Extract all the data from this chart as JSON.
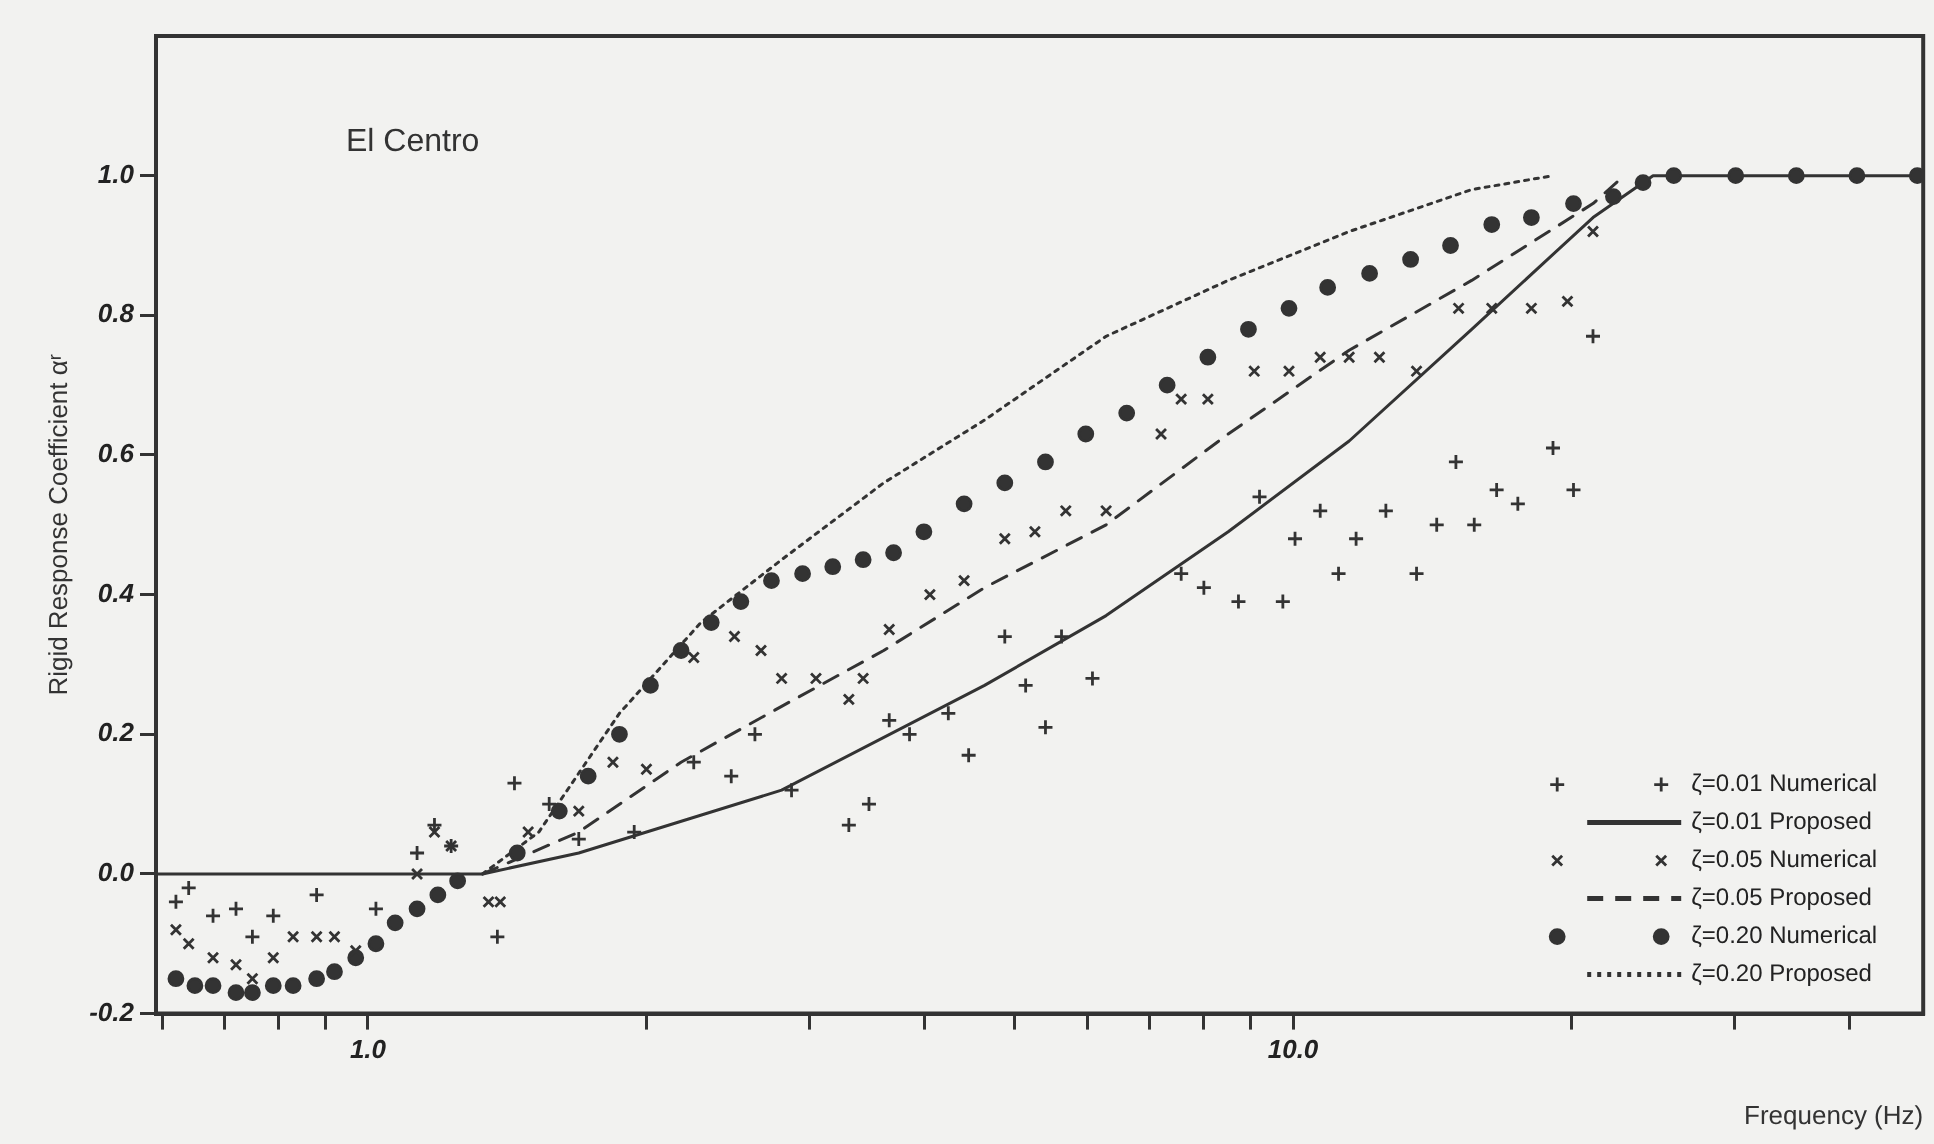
{
  "chart_data": {
    "type": "scatter",
    "xlabel": "Frequency (Hz)",
    "ylabel": "Rigid Response Coefficient αʳ",
    "annotations": [
      "El Centro"
    ],
    "log": "x",
    "xlim": [
      0.59,
      48
    ],
    "ylim": [
      -0.2,
      1.2
    ],
    "xticks": [
      {
        "value": 0.6,
        "label": null
      },
      {
        "value": 0.7,
        "label": null
      },
      {
        "value": 0.8,
        "label": null
      },
      {
        "value": 0.9,
        "label": null
      },
      {
        "value": 1,
        "label": "1.0"
      },
      {
        "value": 2,
        "label": null
      },
      {
        "value": 3,
        "label": null
      },
      {
        "value": 4,
        "label": null
      },
      {
        "value": 5,
        "label": null
      },
      {
        "value": 6,
        "label": null
      },
      {
        "value": 7,
        "label": null
      },
      {
        "value": 8,
        "label": null
      },
      {
        "value": 9,
        "label": null
      },
      {
        "value": 10,
        "label": "10.0"
      },
      {
        "value": 20,
        "label": null
      },
      {
        "value": 30,
        "label": null
      },
      {
        "value": 40,
        "label": null
      }
    ],
    "yticks": [
      {
        "value": -0.2,
        "label": "-0.2"
      },
      {
        "value": 0,
        "label": "0.0"
      },
      {
        "value": 0.2,
        "label": "0.2"
      },
      {
        "value": 0.4,
        "label": "0.4"
      },
      {
        "value": 0.6,
        "label": "0.6"
      },
      {
        "value": 0.8,
        "label": "0.8"
      },
      {
        "value": 1,
        "label": "1.0"
      }
    ],
    "grid": false,
    "legend": "bottom right",
    "series": [
      {
        "name": "ζ=0.01 Numerical",
        "type": "scatter",
        "marker": "cross",
        "color": "#333333",
        "x": [
          0.62,
          0.64,
          0.68,
          0.72,
          0.75,
          0.79,
          0.88,
          1.02,
          1.13,
          1.18,
          1.23,
          1.38,
          1.44,
          1.57,
          1.69,
          1.94,
          2.25,
          2.47,
          2.62,
          2.87,
          3.31,
          3.48,
          3.66,
          3.85,
          4.24,
          4.46,
          4.88,
          5.14,
          5.4,
          5.62,
          6.07,
          7.57,
          8.01,
          8.73,
          9.2,
          9.75,
          10.05,
          10.7,
          11.2,
          11.7,
          12.6,
          13.6,
          14.3,
          15,
          15.7,
          16.6,
          17.5,
          19.1,
          20.1,
          21.1
        ],
        "values": [
          -0.04,
          -0.02,
          -0.06,
          -0.05,
          -0.09,
          -0.06,
          -0.03,
          -0.05,
          0.03,
          0.07,
          0.04,
          -0.09,
          0.13,
          0.1,
          0.05,
          0.06,
          0.16,
          0.14,
          0.2,
          0.12,
          0.07,
          0.1,
          0.22,
          0.2,
          0.23,
          0.17,
          0.34,
          0.27,
          0.21,
          0.34,
          0.28,
          0.43,
          0.41,
          0.39,
          0.54,
          0.39,
          0.48,
          0.52,
          0.43,
          0.48,
          0.52,
          0.43,
          0.5,
          0.59,
          0.5,
          0.55,
          0.53,
          0.61,
          0.55,
          0.77
        ]
      },
      {
        "name": "ζ=0.01 Proposed",
        "type": "line",
        "line_style": "solid",
        "color": "#333333",
        "x": [
          0.59,
          1.33,
          1.69,
          2.8,
          4.64,
          6.28,
          8.51,
          11.5,
          15.6,
          21.1,
          24.5,
          48
        ],
        "values": [
          0,
          0,
          0.03,
          0.12,
          0.27,
          0.37,
          0.49,
          0.62,
          0.78,
          0.94,
          1,
          1
        ]
      },
      {
        "name": "ζ=0.05 Numerical",
        "type": "scatter",
        "marker": "x",
        "color": "#333333",
        "x": [
          0.62,
          0.64,
          0.68,
          0.72,
          0.75,
          0.79,
          0.83,
          0.88,
          0.92,
          0.97,
          1.13,
          1.18,
          1.23,
          1.35,
          1.39,
          1.49,
          1.69,
          1.84,
          2,
          2.25,
          2.49,
          2.66,
          2.8,
          3.05,
          3.31,
          3.43,
          3.66,
          4.05,
          4.41,
          4.88,
          5.26,
          5.68,
          6.28,
          7.2,
          7.57,
          8.09,
          9.08,
          9.9,
          10.7,
          11.5,
          12.4,
          13.6,
          15.1,
          16.4,
          18.1,
          19.8,
          21.1
        ],
        "values": [
          -0.08,
          -0.1,
          -0.12,
          -0.13,
          -0.15,
          -0.12,
          -0.09,
          -0.09,
          -0.09,
          -0.11,
          0,
          0.06,
          0.04,
          -0.04,
          -0.04,
          0.06,
          0.09,
          0.16,
          0.15,
          0.31,
          0.34,
          0.32,
          0.28,
          0.28,
          0.25,
          0.28,
          0.35,
          0.4,
          0.42,
          0.48,
          0.49,
          0.52,
          0.52,
          0.63,
          0.68,
          0.68,
          0.72,
          0.72,
          0.74,
          0.74,
          0.74,
          0.72,
          0.81,
          0.81,
          0.81,
          0.82,
          0.92
        ]
      },
      {
        "name": "ζ=0.05 Proposed",
        "type": "line",
        "line_style": "dashed",
        "color": "#333333",
        "x": [
          1.33,
          1.69,
          2.18,
          2.8,
          3.61,
          4.64,
          6.28,
          8.51,
          11.5,
          15.6,
          21.1,
          22.8
        ],
        "values": [
          0,
          0.06,
          0.16,
          0.24,
          0.32,
          0.41,
          0.5,
          0.63,
          0.75,
          0.85,
          0.96,
          1
        ]
      },
      {
        "name": "ζ=0.20 Numerical",
        "type": "scatter",
        "marker": "circle",
        "color": "#333333",
        "x": [
          0.62,
          0.65,
          0.68,
          0.72,
          0.75,
          0.79,
          0.83,
          0.88,
          0.92,
          0.97,
          1.02,
          1.07,
          1.13,
          1.19,
          1.25,
          1.45,
          1.61,
          1.73,
          1.87,
          2.02,
          2.18,
          2.35,
          2.53,
          2.73,
          2.95,
          3.18,
          3.43,
          3.7,
          3.99,
          4.41,
          4.88,
          5.4,
          5.97,
          6.61,
          7.31,
          8.09,
          8.95,
          9.9,
          10.9,
          12.1,
          13.4,
          14.8,
          16.4,
          18.1,
          20.1,
          22.2,
          23.9,
          25.8,
          30.1,
          35,
          40.7,
          47.3
        ],
        "values": [
          -0.15,
          -0.16,
          -0.16,
          -0.17,
          -0.17,
          -0.16,
          -0.16,
          -0.15,
          -0.14,
          -0.12,
          -0.1,
          -0.07,
          -0.05,
          -0.03,
          -0.01,
          0.03,
          0.09,
          0.14,
          0.2,
          0.27,
          0.32,
          0.36,
          0.39,
          0.42,
          0.43,
          0.44,
          0.45,
          0.46,
          0.49,
          0.53,
          0.56,
          0.59,
          0.63,
          0.66,
          0.7,
          0.74,
          0.78,
          0.81,
          0.84,
          0.86,
          0.88,
          0.9,
          0.93,
          0.94,
          0.96,
          0.97,
          0.99,
          1,
          1,
          1,
          1,
          1
        ]
      },
      {
        "name": "ζ=0.20 Proposed",
        "type": "line",
        "line_style": "dotted",
        "color": "#333333",
        "x": [
          1.33,
          1.53,
          1.87,
          2.29,
          2.8,
          3.61,
          4.64,
          6.28,
          8.51,
          11.5,
          15.6,
          19.1
        ],
        "values": [
          0,
          0.06,
          0.23,
          0.36,
          0.45,
          0.56,
          0.65,
          0.77,
          0.85,
          0.92,
          0.98,
          1
        ]
      }
    ]
  }
}
